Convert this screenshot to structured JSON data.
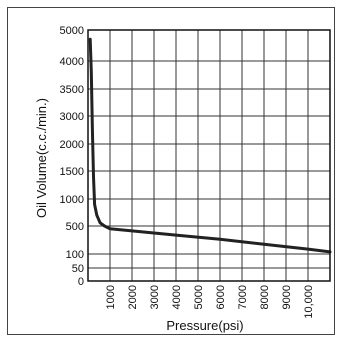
{
  "chart_data": {
    "type": "line",
    "title": "",
    "xlabel": "Pressure(psi)",
    "ylabel": "Oil Volume(c.c./min.)",
    "x_ticks": [
      {
        "value": 1000,
        "label": "1000"
      },
      {
        "value": 2000,
        "label": "2000"
      },
      {
        "value": 3000,
        "label": "3000"
      },
      {
        "value": 4000,
        "label": "4000"
      },
      {
        "value": 5000,
        "label": "5000"
      },
      {
        "value": 6000,
        "label": "6000"
      },
      {
        "value": 7000,
        "label": "7000"
      },
      {
        "value": 8000,
        "label": "8000"
      },
      {
        "value": 9000,
        "label": "9000"
      },
      {
        "value": 10000,
        "label": "10,000"
      }
    ],
    "xlim": [
      0,
      11000
    ],
    "y_ticks": [
      {
        "value": 0,
        "label": "0"
      },
      {
        "value": 50,
        "label": "50"
      },
      {
        "value": 100,
        "label": "100"
      },
      {
        "value": 500,
        "label": "500"
      },
      {
        "value": 1000,
        "label": "1000"
      },
      {
        "value": 1500,
        "label": "1500"
      },
      {
        "value": 2000,
        "label": "2000"
      },
      {
        "value": 3000,
        "label": "3000"
      },
      {
        "value": 3500,
        "label": "3500"
      },
      {
        "value": 4000,
        "label": "4000"
      },
      {
        "value": 5000,
        "label": "5000"
      }
    ],
    "y_scale_note": "nonuniform: tick labels are evenly spaced",
    "grid": true,
    "line_color": "#222222",
    "series": [
      {
        "points": [
          {
            "x": 100,
            "y": 4700
          },
          {
            "x": 150,
            "y": 3800
          },
          {
            "x": 200,
            "y": 2500
          },
          {
            "x": 250,
            "y": 1400
          },
          {
            "x": 300,
            "y": 900
          },
          {
            "x": 400,
            "y": 700
          },
          {
            "x": 550,
            "y": 560
          },
          {
            "x": 750,
            "y": 500
          },
          {
            "x": 1000,
            "y": 460
          },
          {
            "x": 2000,
            "y": 430
          },
          {
            "x": 4000,
            "y": 370
          },
          {
            "x": 6000,
            "y": 310
          },
          {
            "x": 8000,
            "y": 240
          },
          {
            "x": 10000,
            "y": 170
          },
          {
            "x": 11000,
            "y": 130
          }
        ]
      }
    ]
  }
}
